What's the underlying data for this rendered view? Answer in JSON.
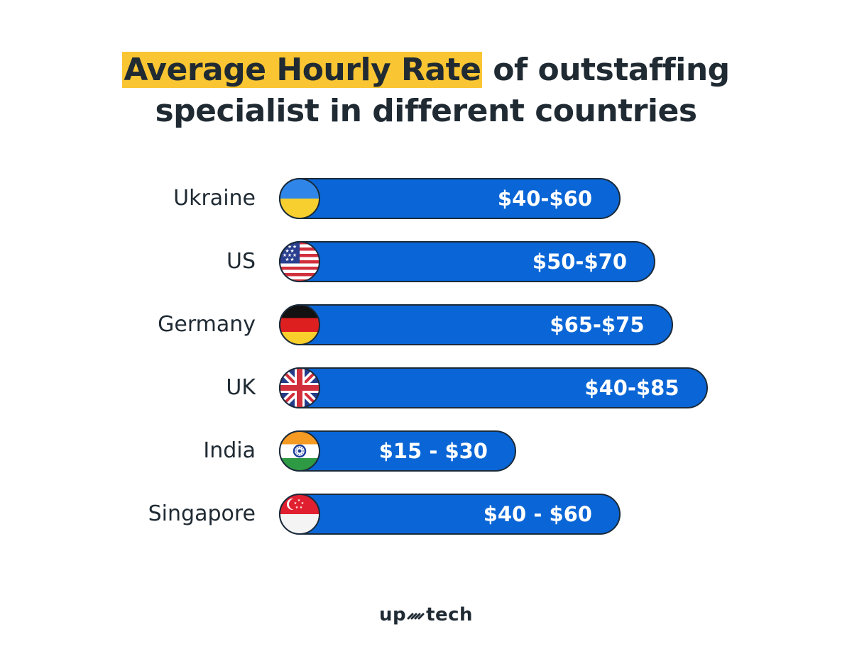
{
  "title": {
    "highlight": "Average Hourly Rate",
    "rest_line1": " of outstaffing",
    "line2": "specialist in different countries"
  },
  "colors": {
    "bar": "#0a66d6",
    "bar_border": "#1a2a3a",
    "highlight": "#f9c532",
    "text": "#1f2a33"
  },
  "chart_data": {
    "type": "bar",
    "orientation": "horizontal",
    "title": "Average Hourly Rate of outstaffing specialist in different countries",
    "categories": [
      "Ukraine",
      "US",
      "Germany",
      "UK",
      "India",
      "Singapore"
    ],
    "ranges": [
      [
        40,
        60
      ],
      [
        50,
        70
      ],
      [
        65,
        75
      ],
      [
        40,
        85
      ],
      [
        15,
        30
      ],
      [
        40,
        60
      ]
    ],
    "value_labels": [
      "$40-$60",
      "$50-$70",
      "$65-$75",
      "$40-$85",
      "$15 - $30",
      "$40 - $60"
    ],
    "flags": [
      "ukraine-flag-icon",
      "us-flag-icon",
      "germany-flag-icon",
      "uk-flag-icon",
      "india-flag-icon",
      "singapore-flag-icon"
    ],
    "grid": false,
    "legend": "none"
  },
  "brand": {
    "left": "up",
    "right": "tech",
    "mark_icon": "upstech-mark-icon"
  }
}
